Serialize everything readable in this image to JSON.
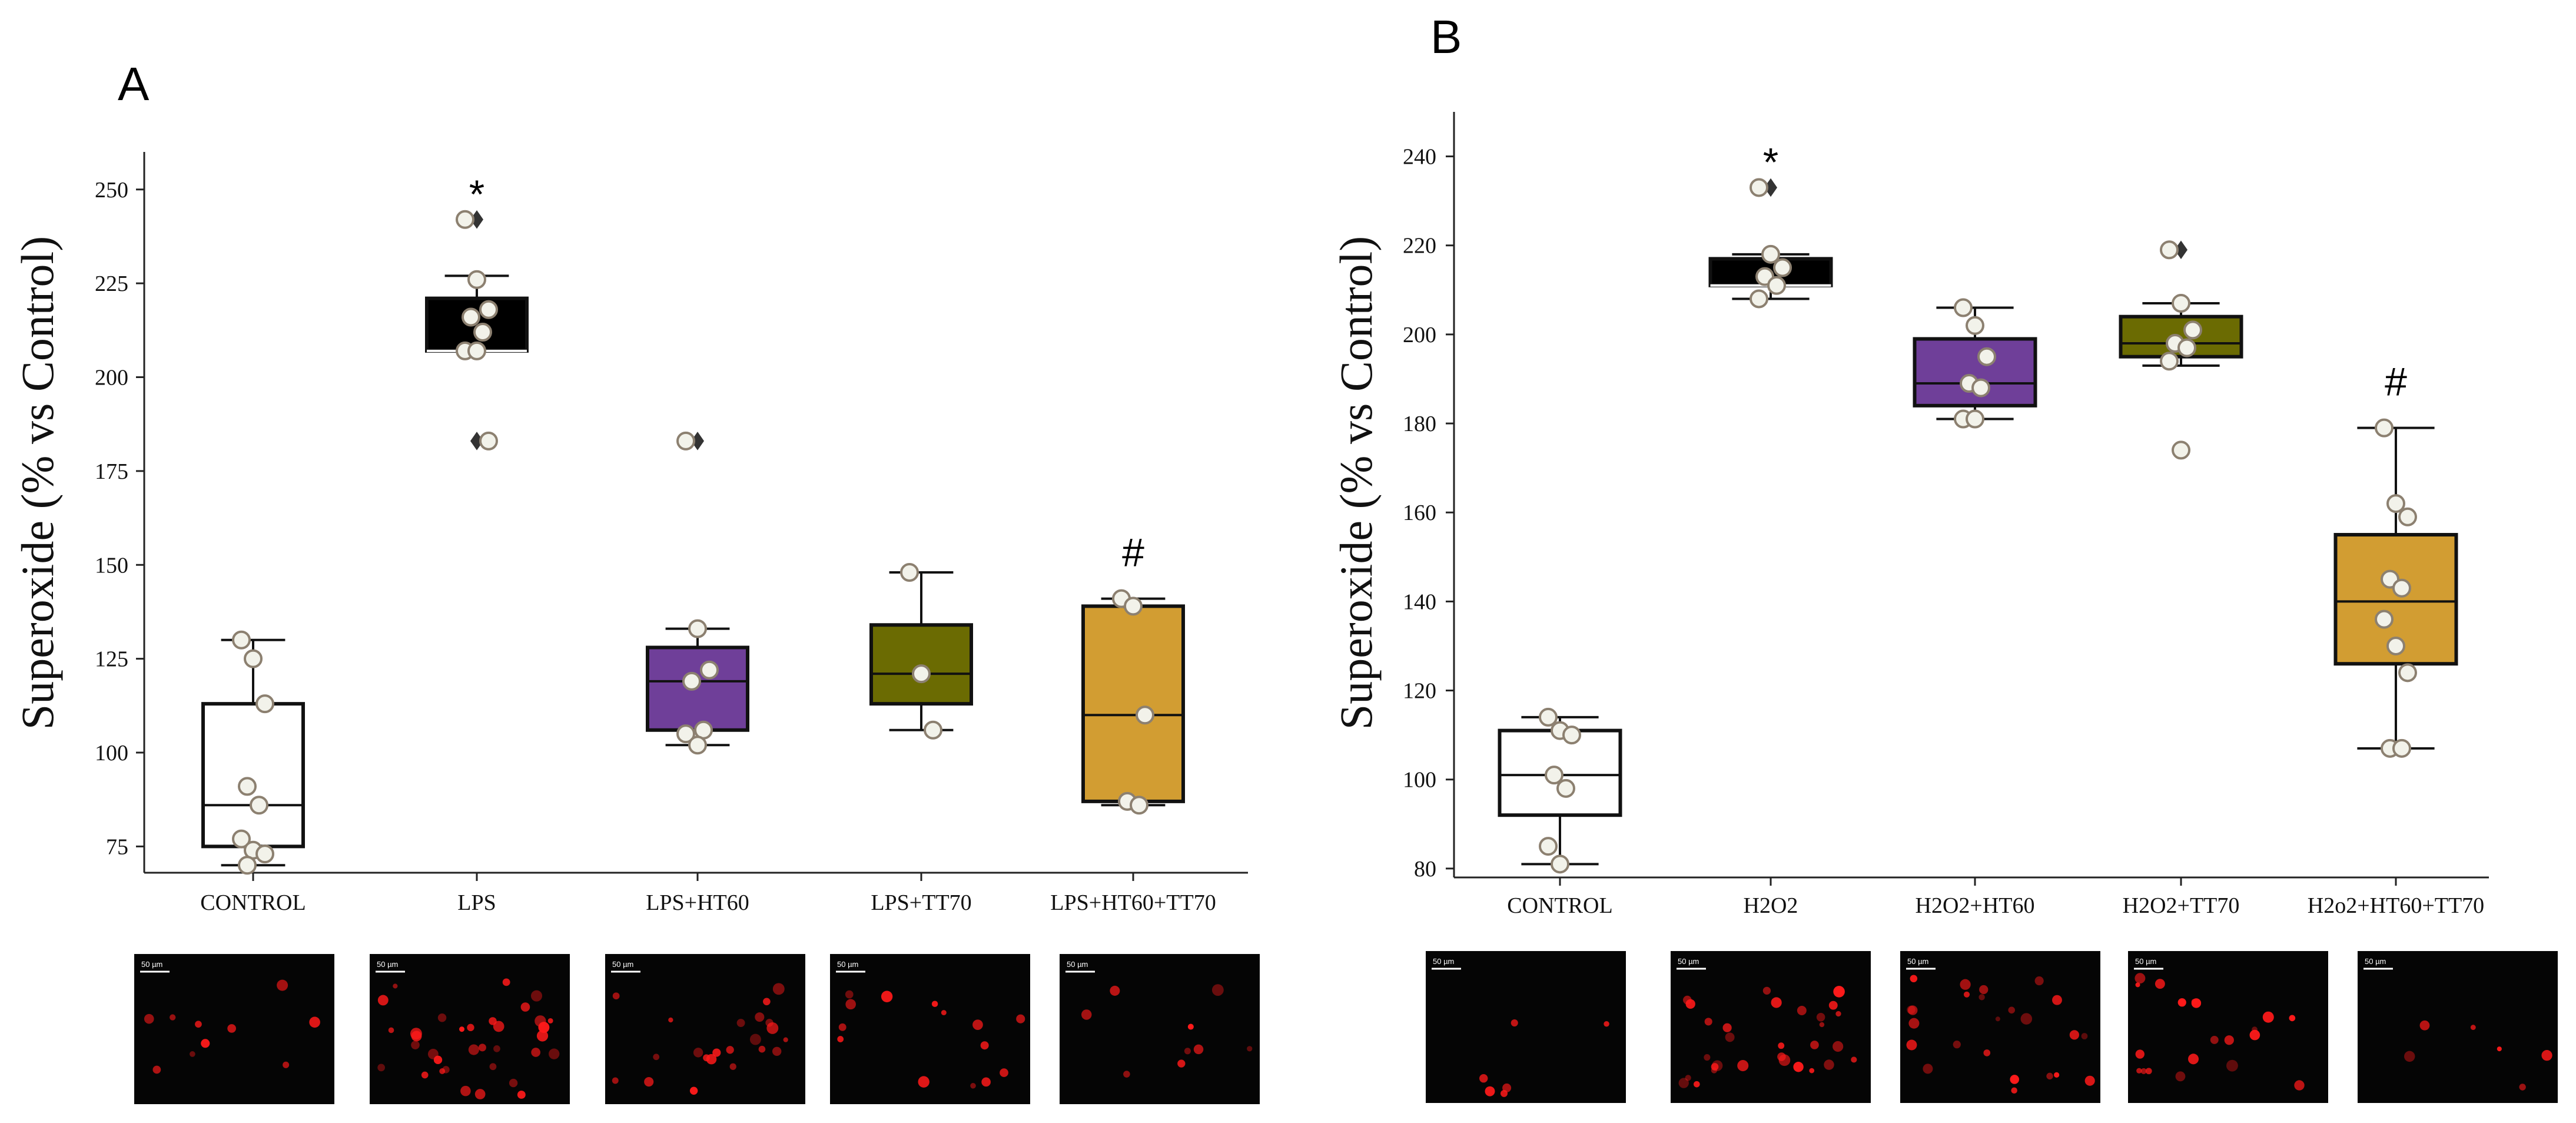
{
  "colors": {
    "control": "#ffffff",
    "lps": "#000000",
    "ht60": "#6f3f99",
    "tt70": "#6b6b02",
    "combo": "#d29d32",
    "point_fill": "#f2f2ea",
    "point_stroke": "#8c8070",
    "cell": "#ff1a1a"
  },
  "chart_data": [
    {
      "panel": "A",
      "type": "box",
      "ylabel": "Superoxide (% vs Control)",
      "ylim": [
        68,
        260
      ],
      "yticks": [
        75,
        100,
        125,
        150,
        175,
        200,
        225,
        250
      ],
      "categories": [
        "CONTROL",
        "LPS",
        "LPS+HT60",
        "LPS+TT70",
        "LPS+HT60+TT70"
      ],
      "boxes": [
        {
          "q1": 75,
          "median": 86,
          "q3": 113,
          "whislo": 70,
          "whishi": 130,
          "fliers": [],
          "points": [
            130,
            125,
            113,
            91,
            86,
            77,
            74,
            73,
            70
          ]
        },
        {
          "q1": 207,
          "median": 207,
          "q3": 221,
          "whislo": 207,
          "whishi": 227,
          "fliers": [
            242,
            183
          ],
          "points": [
            242,
            226,
            218,
            216,
            212,
            207,
            207,
            183
          ]
        },
        {
          "q1": 106,
          "median": 119,
          "q3": 128,
          "whislo": 102,
          "whishi": 133,
          "fliers": [
            183
          ],
          "points": [
            183,
            133,
            122,
            119,
            106,
            105,
            102
          ]
        },
        {
          "q1": 113,
          "median": 121,
          "q3": 134,
          "whislo": 106,
          "whishi": 148,
          "fliers": [],
          "points": [
            148,
            121,
            106
          ]
        },
        {
          "q1": 87,
          "median": 110,
          "q3": 139,
          "whislo": 86,
          "whishi": 141,
          "fliers": [],
          "points": [
            141,
            139,
            110,
            87,
            86
          ]
        }
      ],
      "annotations": [
        {
          "category": "LPS",
          "text": "*"
        },
        {
          "category": "LPS+HT60+TT70",
          "text": "#"
        }
      ],
      "micrographs": [
        {
          "scale": "50 µm",
          "cells": 10
        },
        {
          "scale": "50 µm",
          "cells": 34
        },
        {
          "scale": "50 µm",
          "cells": 22
        },
        {
          "scale": "50 µm",
          "cells": 14
        },
        {
          "scale": "50 µm",
          "cells": 9
        }
      ]
    },
    {
      "panel": "B",
      "type": "box",
      "ylabel": "Superoxide (% vs Control)",
      "ylim": [
        78,
        250
      ],
      "yticks": [
        80,
        100,
        120,
        140,
        160,
        180,
        200,
        220,
        240
      ],
      "categories": [
        "CONTROL",
        "H2O2",
        "H2O2+HT60",
        "H2O2+TT70",
        "H2o2+HT60+TT70"
      ],
      "boxes": [
        {
          "q1": 92,
          "median": 101,
          "q3": 111,
          "whislo": 81,
          "whishi": 114,
          "fliers": [],
          "points": [
            114,
            111,
            110,
            101,
            98,
            85,
            81
          ]
        },
        {
          "q1": 211,
          "median": 211,
          "q3": 217,
          "whislo": 208,
          "whishi": 218,
          "fliers": [
            233
          ],
          "points": [
            233,
            218,
            215,
            213,
            211,
            208
          ]
        },
        {
          "q1": 184,
          "median": 189,
          "q3": 199,
          "whislo": 181,
          "whishi": 206,
          "fliers": [],
          "points": [
            206,
            202,
            195,
            189,
            188,
            181,
            181
          ]
        },
        {
          "q1": 195,
          "median": 198,
          "q3": 204,
          "whislo": 193,
          "whishi": 207,
          "fliers": [
            219,
            174
          ],
          "points": [
            219,
            207,
            201,
            198,
            197,
            194,
            174
          ]
        },
        {
          "q1": 126,
          "median": 140,
          "q3": 155,
          "whislo": 107,
          "whishi": 179,
          "fliers": [],
          "points": [
            179,
            162,
            159,
            145,
            143,
            136,
            130,
            124,
            107,
            107
          ]
        }
      ],
      "annotations": [
        {
          "category": "H2O2",
          "text": "*"
        },
        {
          "category": "H2o2+HT60+TT70",
          "text": "#"
        }
      ],
      "micrographs": [
        {
          "scale": "50 µm",
          "cells": 6
        },
        {
          "scale": "50 µm",
          "cells": 30
        },
        {
          "scale": "50 µm",
          "cells": 24
        },
        {
          "scale": "50 µm",
          "cells": 20
        },
        {
          "scale": "50 µm",
          "cells": 6
        }
      ]
    }
  ]
}
